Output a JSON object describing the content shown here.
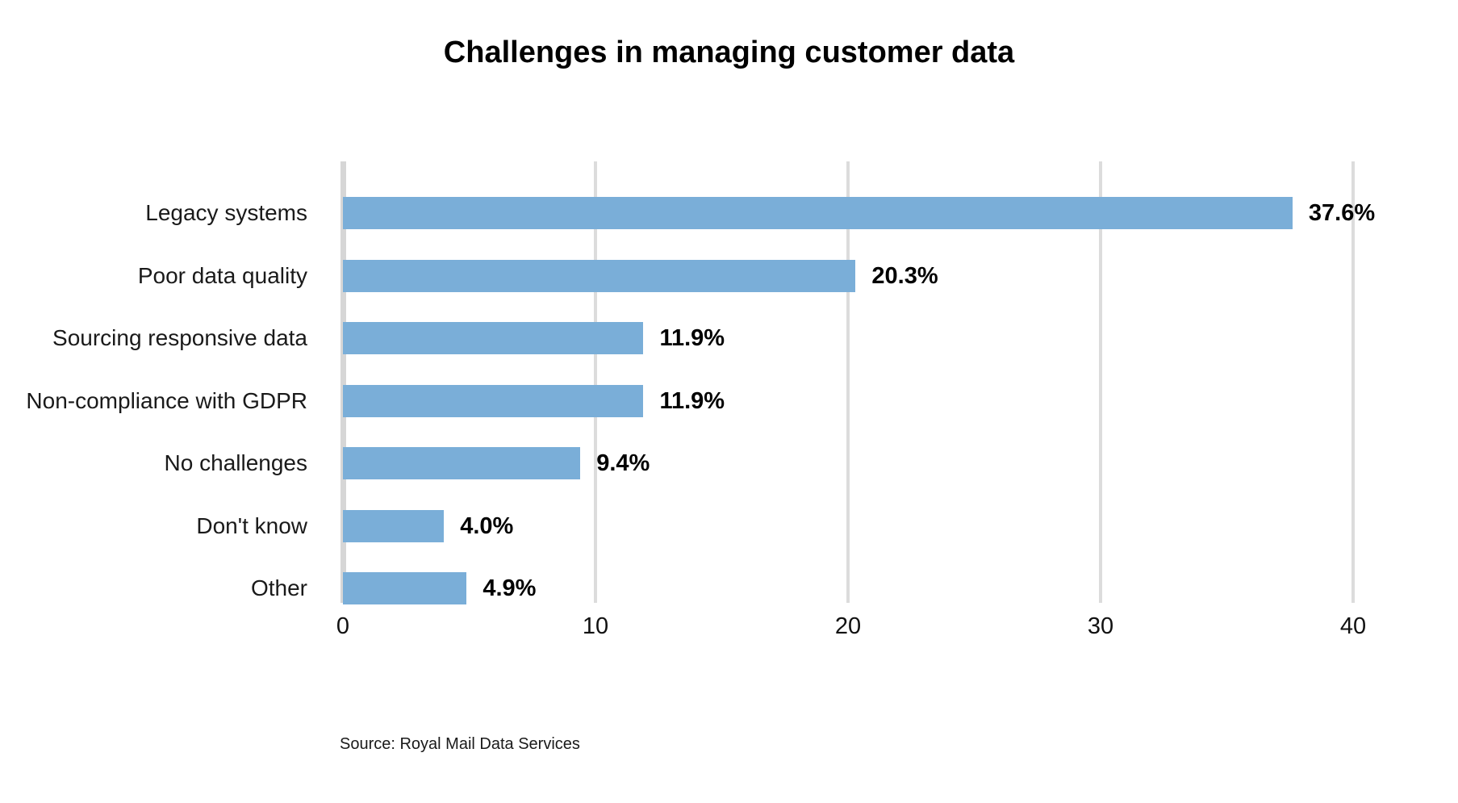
{
  "chart_data": {
    "type": "bar",
    "orientation": "horizontal",
    "title": "Challenges in managing customer data",
    "categories": [
      "Legacy systems",
      "Poor data quality",
      "Sourcing responsive data",
      "Non-compliance with GDPR",
      "No challenges",
      "Don't know",
      "Other"
    ],
    "values": [
      37.6,
      20.3,
      11.9,
      11.9,
      9.4,
      4.0,
      4.9
    ],
    "value_labels": [
      "37.6%",
      "20.3%",
      "11.9%",
      "11.9%",
      "9.4%",
      "4.0%",
      "4.9%"
    ],
    "x_ticks": [
      "0",
      "10",
      "20",
      "30",
      "40"
    ],
    "x_tick_values": [
      0,
      10,
      20,
      30,
      40
    ],
    "xlim": [
      0,
      40
    ],
    "xlabel": "",
    "ylabel": "",
    "grid": "vertical-gridlines",
    "legend": "none",
    "source": "Source: Royal Mail Data Services",
    "colors": {
      "bar": "#7aaed8",
      "gridline": "#dcdcdc",
      "axis_line": "#d6d6d6",
      "title_text": "#000000",
      "label_text": "#1a1a1a"
    }
  }
}
